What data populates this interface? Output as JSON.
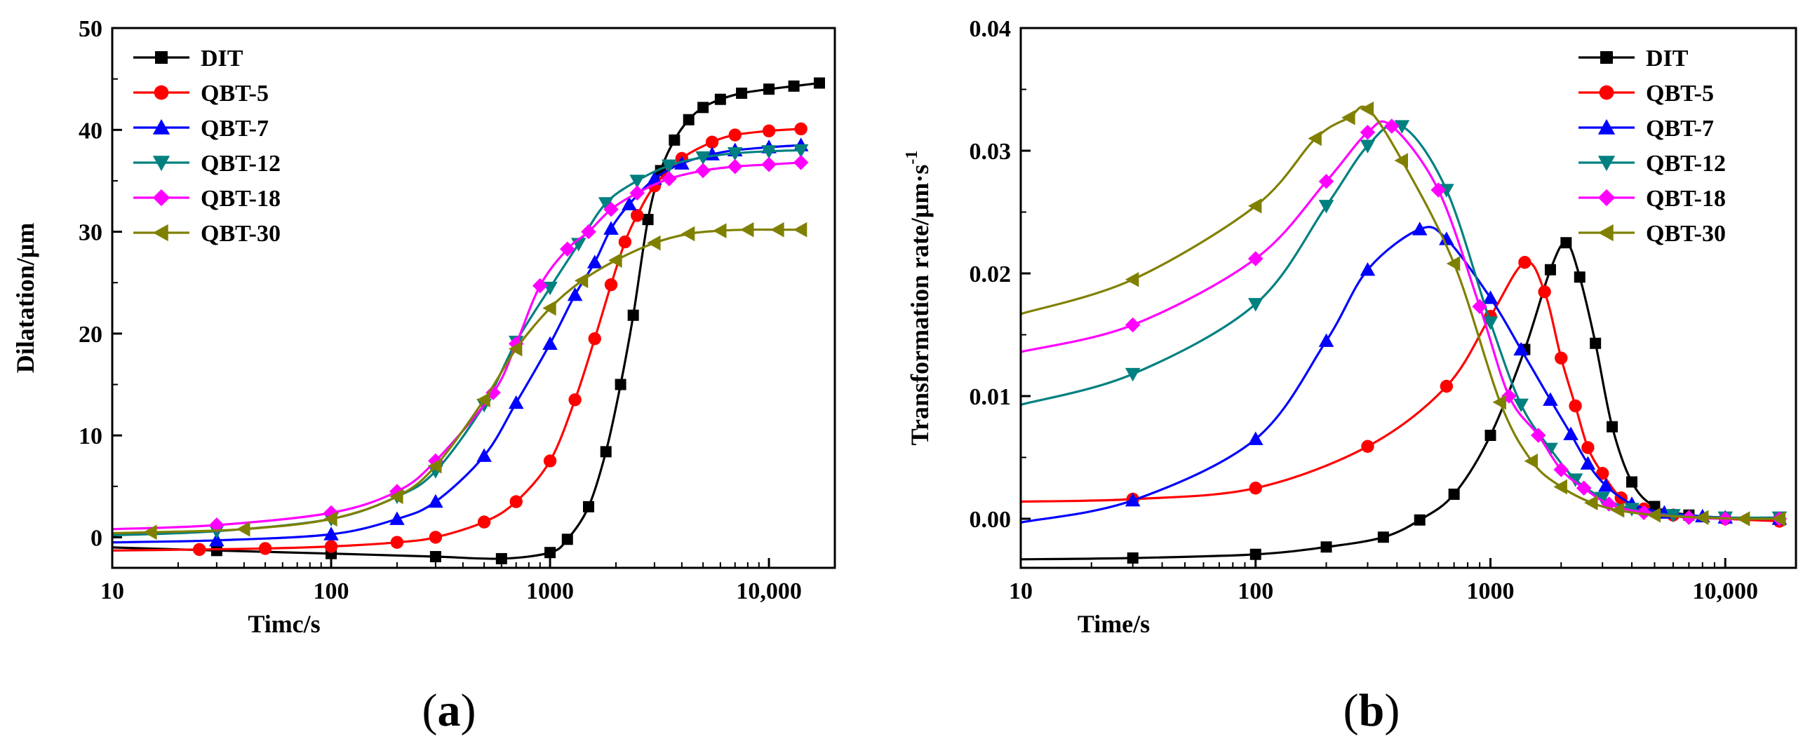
{
  "chart_data": [
    {
      "type": "line",
      "panel": "(a)",
      "panel_letter": "a",
      "xlabel": "Timc/s",
      "ylabel": "Dilatation/μm",
      "x_scale": "log",
      "xlim": [
        10,
        20000
      ],
      "ylim": [
        -3,
        50
      ],
      "xticks": [
        10,
        100,
        1000,
        10000
      ],
      "xtick_labels": [
        "10",
        "100",
        "1000",
        "10,000"
      ],
      "yticks": [
        0,
        10,
        20,
        30,
        40,
        50
      ],
      "ytick_labels": [
        "0",
        "10",
        "20",
        "30",
        "40",
        "50"
      ],
      "grid": false,
      "legend_position": "top-left",
      "series": [
        {
          "name": "DIT",
          "color": "#000000",
          "marker": "square",
          "x": [
            10,
            30,
            100,
            300,
            600,
            1000,
            1200,
            1500,
            1800,
            2100,
            2400,
            2800,
            3200,
            3700,
            4300,
            5000,
            6000,
            7500,
            10000,
            13000,
            17000
          ],
          "y": [
            -1,
            -1.3,
            -1.6,
            -1.9,
            -2.1,
            -1.5,
            -0.2,
            3,
            8.4,
            15,
            21.8,
            31.2,
            36,
            39,
            41,
            42.2,
            43,
            43.6,
            44,
            44.3,
            44.6
          ]
        },
        {
          "name": "QBT-5",
          "color": "#ff0000",
          "marker": "circle",
          "x": [
            10,
            25,
            50,
            100,
            200,
            300,
            500,
            700,
            1000,
            1300,
            1600,
            1900,
            2200,
            2500,
            3000,
            4000,
            5500,
            7000,
            10000,
            14000
          ],
          "y": [
            -1.3,
            -1.2,
            -1.1,
            -0.9,
            -0.5,
            0,
            1.5,
            3.5,
            7.5,
            13.5,
            19.5,
            24.8,
            29,
            31.6,
            34.5,
            37.2,
            38.8,
            39.5,
            39.9,
            40.1
          ]
        },
        {
          "name": "QBT-7",
          "color": "#0000ff",
          "marker": "triangle-up",
          "x": [
            10,
            30,
            100,
            200,
            300,
            500,
            700,
            1000,
            1300,
            1600,
            1900,
            2300,
            3000,
            4000,
            5500,
            7000,
            10000,
            14000
          ],
          "y": [
            -0.5,
            -0.3,
            0.3,
            1.8,
            3.5,
            8,
            13.2,
            19,
            23.8,
            27,
            30.3,
            32.7,
            35.2,
            36.7,
            37.6,
            38,
            38.3,
            38.5
          ]
        },
        {
          "name": "QBT-12",
          "color": "#008080",
          "marker": "triangle-down",
          "x": [
            10,
            30,
            100,
            200,
            300,
            500,
            700,
            1000,
            1350,
            1800,
            2500,
            3500,
            5000,
            7000,
            10000,
            14000
          ],
          "y": [
            0.2,
            0.6,
            1.8,
            4,
            6.5,
            13,
            19.2,
            24.5,
            28.8,
            32.8,
            35,
            36.5,
            37.3,
            37.7,
            37.9,
            38
          ]
        },
        {
          "name": "QBT-18",
          "color": "#ff00ff",
          "marker": "diamond",
          "x": [
            10,
            30,
            100,
            200,
            300,
            550,
            700,
            900,
            1200,
            1500,
            1900,
            2500,
            3500,
            5000,
            7000,
            10000,
            14000
          ],
          "y": [
            0.8,
            1.2,
            2.4,
            4.5,
            7.5,
            14.2,
            19,
            24.7,
            28.3,
            30,
            32.2,
            33.8,
            35.2,
            36,
            36.4,
            36.6,
            36.8
          ]
        },
        {
          "name": "QBT-30",
          "color": "#808000",
          "marker": "triangle-left",
          "x": [
            10,
            15,
            40,
            100,
            200,
            300,
            500,
            700,
            1000,
            1400,
            2000,
            3000,
            4300,
            6000,
            8000,
            11000,
            14000
          ],
          "y": [
            0.4,
            0.5,
            0.8,
            1.8,
            4,
            7,
            13.5,
            18.5,
            22.5,
            25.2,
            27.2,
            28.9,
            29.8,
            30.1,
            30.2,
            30.2,
            30.2
          ]
        }
      ]
    },
    {
      "type": "line",
      "panel": "(b)",
      "panel_letter": "b",
      "xlabel": "Time/s",
      "ylabel_main": "Transformation rate/μm·s",
      "ylabel_sup": "-1",
      "x_scale": "log",
      "xlim": [
        10,
        20000
      ],
      "ylim": [
        -0.004,
        0.04
      ],
      "xticks": [
        10,
        100,
        1000,
        10000
      ],
      "xtick_labels": [
        "10",
        "100",
        "1000",
        "10,000"
      ],
      "yticks": [
        0.0,
        0.01,
        0.02,
        0.03,
        0.04
      ],
      "ytick_labels": [
        "0.00",
        "0.01",
        "0.02",
        "0.03",
        "0.04"
      ],
      "grid": false,
      "legend_position": "top-right",
      "series": [
        {
          "name": "DIT",
          "color": "#000000",
          "marker": "square",
          "x": [
            10,
            30,
            100,
            200,
            350,
            500,
            700,
            1000,
            1400,
            1800,
            2100,
            2400,
            2800,
            3300,
            4000,
            5000,
            7000,
            10000,
            17000
          ],
          "y": [
            -0.0033,
            -0.0032,
            -0.0029,
            -0.0023,
            -0.0015,
            -0.0001,
            0.002,
            0.0068,
            0.0138,
            0.0203,
            0.0225,
            0.0197,
            0.0143,
            0.0075,
            0.003,
            0.001,
            0.0003,
            0.0001,
            0.0
          ]
        },
        {
          "name": "QBT-5",
          "color": "#ff0000",
          "marker": "circle",
          "x": [
            10,
            30,
            100,
            300,
            650,
            1000,
            1400,
            1700,
            2000,
            2300,
            2600,
            3000,
            3600,
            4500,
            6000,
            10000,
            17000
          ],
          "y": [
            0.0014,
            0.0016,
            0.0025,
            0.0059,
            0.0108,
            0.0165,
            0.0209,
            0.0185,
            0.0131,
            0.0092,
            0.0058,
            0.0037,
            0.0017,
            0.0008,
            0.0003,
            0.0,
            -0.0002
          ]
        },
        {
          "name": "QBT-7",
          "color": "#0000ff",
          "marker": "triangle-up",
          "x": [
            10,
            30,
            100,
            200,
            300,
            500,
            650,
            1000,
            1350,
            1800,
            2200,
            2600,
            3100,
            4000,
            5500,
            8000,
            10000,
            17000
          ],
          "y": [
            -0.0003,
            0.0015,
            0.0065,
            0.0145,
            0.0203,
            0.0236,
            0.0228,
            0.018,
            0.0138,
            0.0097,
            0.0069,
            0.0045,
            0.0027,
            0.0012,
            0.0005,
            0.0002,
            0.0001,
            0.0
          ]
        },
        {
          "name": "QBT-12",
          "color": "#008080",
          "marker": "triangle-down",
          "x": [
            10,
            30,
            100,
            200,
            300,
            420,
            650,
            1000,
            1350,
            1800,
            2300,
            3000,
            4000,
            6000,
            10000,
            17000
          ],
          "y": [
            0.0093,
            0.0118,
            0.0175,
            0.0255,
            0.0304,
            0.032,
            0.0268,
            0.016,
            0.0093,
            0.0057,
            0.0032,
            0.0017,
            0.0008,
            0.0003,
            0.0001,
            0.0001
          ]
        },
        {
          "name": "QBT-18",
          "color": "#ff00ff",
          "marker": "diamond",
          "x": [
            10,
            30,
            100,
            200,
            300,
            380,
            600,
            900,
            1200,
            1600,
            2000,
            2500,
            3200,
            4500,
            7000,
            10000,
            17000
          ],
          "y": [
            0.0136,
            0.0158,
            0.0212,
            0.0275,
            0.0315,
            0.032,
            0.0268,
            0.0173,
            0.01,
            0.0068,
            0.004,
            0.0025,
            0.0012,
            0.0005,
            0.0001,
            0.0,
            0.0
          ]
        },
        {
          "name": "QBT-30",
          "color": "#808000",
          "marker": "triangle-left",
          "x": [
            10,
            30,
            100,
            180,
            250,
            300,
            420,
            700,
            1100,
            1500,
            2000,
            2700,
            3500,
            5000,
            8000,
            12000,
            17000
          ],
          "y": [
            0.0167,
            0.0195,
            0.0255,
            0.031,
            0.0327,
            0.0334,
            0.0292,
            0.0208,
            0.0095,
            0.0047,
            0.0026,
            0.0013,
            0.0007,
            0.0003,
            0.0001,
            0.0,
            0.0
          ]
        }
      ]
    }
  ]
}
